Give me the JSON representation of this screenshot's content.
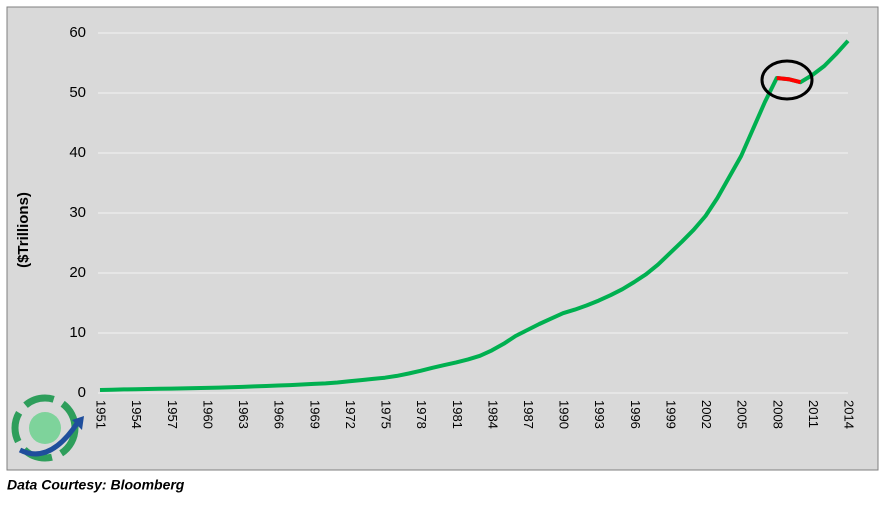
{
  "chart_data": {
    "type": "line",
    "y_label": "($Trillions)",
    "footer": "Data Courtesy: Bloomberg",
    "x": [
      1951,
      1952,
      1953,
      1954,
      1955,
      1956,
      1957,
      1958,
      1959,
      1960,
      1961,
      1962,
      1963,
      1964,
      1965,
      1966,
      1967,
      1968,
      1969,
      1970,
      1971,
      1972,
      1973,
      1974,
      1975,
      1976,
      1977,
      1978,
      1979,
      1980,
      1981,
      1982,
      1983,
      1984,
      1985,
      1986,
      1987,
      1988,
      1989,
      1990,
      1991,
      1992,
      1993,
      1994,
      1995,
      1996,
      1997,
      1998,
      1999,
      2000,
      2001,
      2002,
      2003,
      2004,
      2005,
      2006,
      2007,
      2008,
      2009,
      2010,
      2011,
      2012,
      2013,
      2014
    ],
    "series": [
      {
        "color": "#00b050",
        "values": [
          0.5,
          0.55,
          0.6,
          0.62,
          0.66,
          0.7,
          0.73,
          0.77,
          0.82,
          0.86,
          0.9,
          0.96,
          1.02,
          1.1,
          1.17,
          1.24,
          1.32,
          1.42,
          1.52,
          1.6,
          1.75,
          1.95,
          2.15,
          2.35,
          2.55,
          2.85,
          3.25,
          3.7,
          4.2,
          4.65,
          5.1,
          5.6,
          6.2,
          7.1,
          8.2,
          9.5,
          10.5,
          11.5,
          12.4,
          13.3,
          13.9,
          14.6,
          15.4,
          16.3,
          17.3,
          18.5,
          19.8,
          21.4,
          23.3,
          25.2,
          27.2,
          29.5,
          32.5,
          36,
          39.5,
          44,
          48.5,
          52.5,
          52.3,
          51.8,
          53,
          54.5,
          56.5,
          58.7
        ]
      },
      {
        "color": "#ff0000",
        "values": [
          null,
          null,
          null,
          null,
          null,
          null,
          null,
          null,
          null,
          null,
          null,
          null,
          null,
          null,
          null,
          null,
          null,
          null,
          null,
          null,
          null,
          null,
          null,
          null,
          null,
          null,
          null,
          null,
          null,
          null,
          null,
          null,
          null,
          null,
          null,
          null,
          null,
          null,
          null,
          null,
          null,
          null,
          null,
          null,
          null,
          null,
          null,
          null,
          null,
          null,
          null,
          null,
          null,
          null,
          null,
          null,
          null,
          52.5,
          52.3,
          51.8,
          null,
          null,
          null,
          null
        ]
      }
    ],
    "xlim": [
      1951,
      2014
    ],
    "xticks": [
      1951,
      1954,
      1957,
      1960,
      1963,
      1966,
      1969,
      1972,
      1975,
      1978,
      1981,
      1984,
      1987,
      1990,
      1993,
      1996,
      1999,
      2002,
      2005,
      2008,
      2011,
      2014
    ],
    "ylim": [
      0,
      60
    ],
    "yticks": [
      0,
      10,
      20,
      30,
      40,
      50,
      60
    ],
    "grid": true
  }
}
